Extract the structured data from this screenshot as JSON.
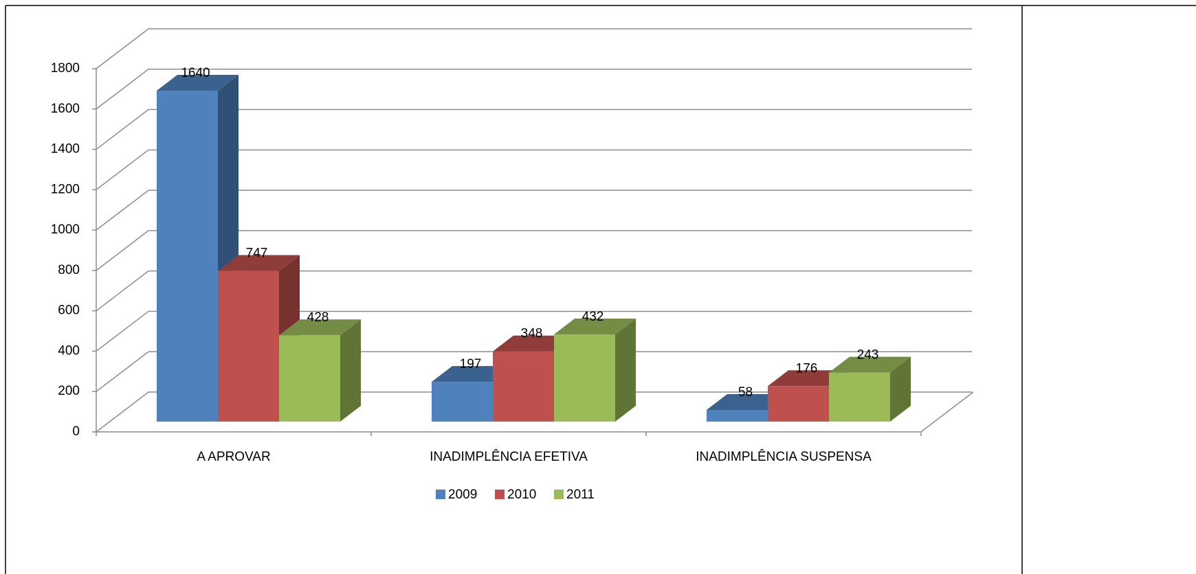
{
  "chart_data": {
    "type": "bar3d",
    "categories": [
      "A APROVAR",
      "INADIMPLÊNCIA EFETIVA",
      "INADIMPLÊNCIA SUSPENSA"
    ],
    "series": [
      {
        "name": "2009",
        "color": "#4f81bd",
        "values": [
          1640,
          197,
          58
        ]
      },
      {
        "name": "2010",
        "color": "#c0504d",
        "values": [
          747,
          348,
          176
        ]
      },
      {
        "name": "2011",
        "color": "#9bbb59",
        "values": [
          428,
          432,
          243
        ]
      }
    ],
    "ylim": [
      0,
      1800
    ],
    "yticks": [
      0,
      200,
      400,
      600,
      800,
      1000,
      1200,
      1400,
      1600,
      1800
    ],
    "grid": true,
    "legend": "bottom"
  }
}
